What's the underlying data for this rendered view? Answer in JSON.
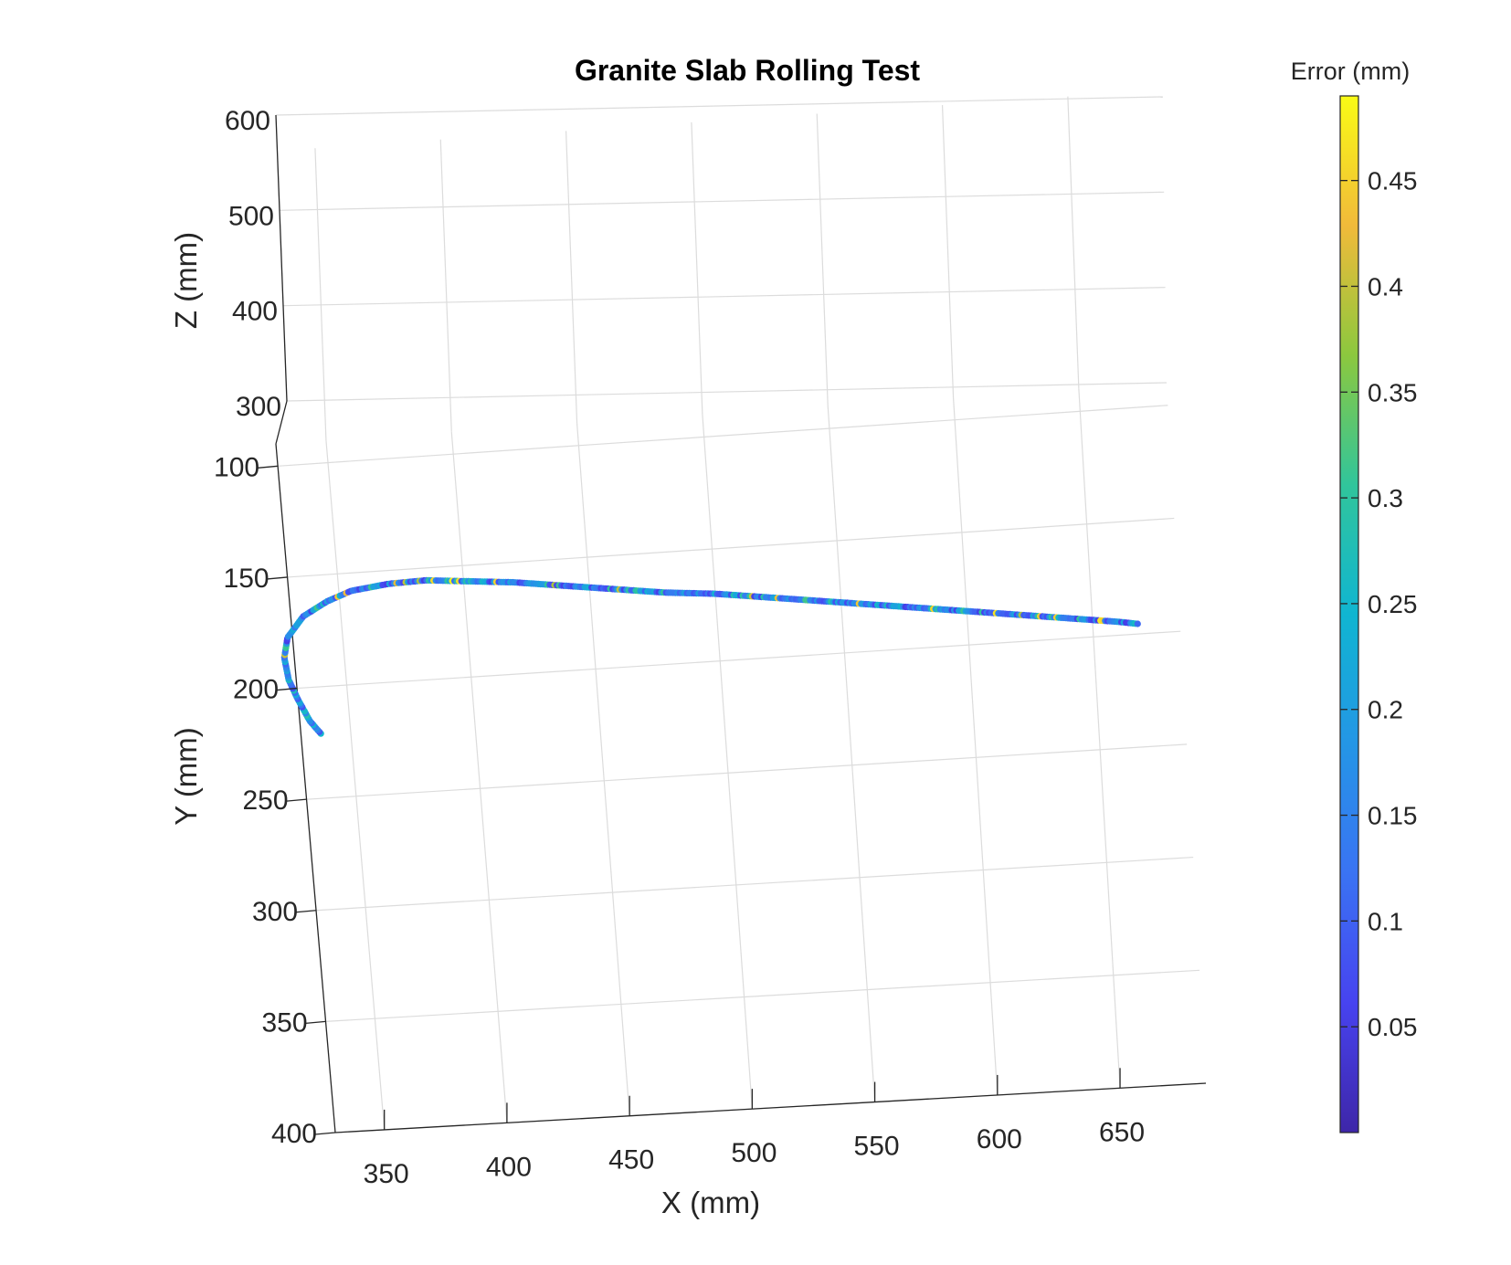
{
  "chart_data": {
    "type": "scatter",
    "title": "Granite Slab Rolling Test",
    "xlabel": "X (mm)",
    "ylabel": "Y (mm)",
    "zlabel": "Z (mm)",
    "x_ticks": [
      "350",
      "400",
      "450",
      "500",
      "550",
      "600",
      "650"
    ],
    "y_ticks": [
      "100",
      "150",
      "200",
      "250",
      "300",
      "350",
      "400"
    ],
    "z_ticks": [
      "300",
      "400",
      "500",
      "600"
    ],
    "xlim": [
      330,
      685
    ],
    "ylim": [
      90,
      400
    ],
    "zlim": [
      300,
      600
    ],
    "grid": true,
    "colorbar": {
      "label": "Error (mm)",
      "range": [
        0.0,
        0.49
      ],
      "ticks": [
        "0.05",
        "0.1",
        "0.15",
        "0.2",
        "0.25",
        "0.3",
        "0.35",
        "0.4",
        "0.45"
      ],
      "colormap": "parula"
    },
    "trajectory_xy": [
      [
        338,
        221
      ],
      [
        334,
        215
      ],
      [
        330,
        205
      ],
      [
        327,
        196
      ],
      [
        326,
        186
      ],
      [
        328,
        177
      ],
      [
        335,
        168
      ],
      [
        345,
        162
      ],
      [
        355,
        158
      ],
      [
        370,
        156
      ],
      [
        385,
        155.5
      ],
      [
        400,
        157
      ],
      [
        420,
        159
      ],
      [
        440,
        162
      ],
      [
        460,
        165
      ],
      [
        480,
        168
      ],
      [
        500,
        170
      ],
      [
        520,
        173
      ],
      [
        540,
        176
      ],
      [
        560,
        179
      ],
      [
        580,
        182
      ],
      [
        600,
        185
      ],
      [
        620,
        188
      ],
      [
        640,
        191
      ],
      [
        660,
        194
      ],
      [
        668,
        195.5
      ]
    ],
    "n_points": 420,
    "error_range": [
      0.0,
      0.49
    ]
  }
}
